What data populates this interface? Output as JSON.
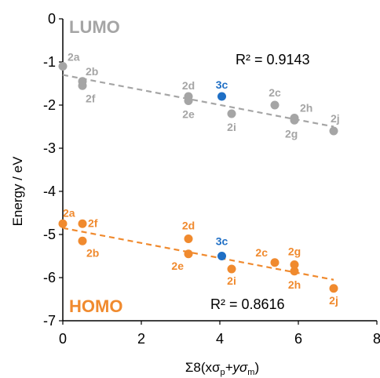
{
  "chart_data": {
    "type": "scatter",
    "xlabel": "Σ8(xσ",
    "xlabel_sub1": "p",
    "xlabel_mid": "+yσ",
    "xlabel_sub2": "m",
    "xlabel_end": ")",
    "ylabel": "Energy / eV",
    "xlim": [
      0,
      8
    ],
    "ylim": [
      -7,
      0
    ],
    "x_ticks": [
      "0",
      "2",
      "4",
      "6",
      "8"
    ],
    "x_tick_values": [
      0,
      2,
      4,
      6,
      8
    ],
    "y_ticks": [
      "0",
      "-1",
      "-2",
      "-3",
      "-4",
      "-5",
      "-6",
      "-7"
    ],
    "y_tick_values": [
      0,
      -1,
      -2,
      -3,
      -4,
      -5,
      -6,
      -7
    ],
    "grid": false,
    "series": [
      {
        "name": "LUMO",
        "color": "#a5a5a5",
        "r2": "R² = 0.9143",
        "trendline": {
          "x": [
            0,
            6.9
          ],
          "y": [
            -1.3,
            -2.5
          ]
        },
        "points": [
          {
            "label": "2a",
            "x": 0.0,
            "y": -1.1,
            "color": "#a5a5a5"
          },
          {
            "label": "2b",
            "x": 0.5,
            "y": -1.45,
            "color": "#a5a5a5"
          },
          {
            "label": "2f",
            "x": 0.5,
            "y": -1.55,
            "color": "#a5a5a5"
          },
          {
            "label": "2d",
            "x": 3.2,
            "y": -1.8,
            "color": "#a5a5a5"
          },
          {
            "label": "2e",
            "x": 3.2,
            "y": -1.9,
            "color": "#a5a5a5"
          },
          {
            "label": "3c",
            "x": 4.05,
            "y": -1.8,
            "color": "#1f6fc5"
          },
          {
            "label": "2i",
            "x": 4.3,
            "y": -2.2,
            "color": "#a5a5a5"
          },
          {
            "label": "2c",
            "x": 5.4,
            "y": -2.0,
            "color": "#a5a5a5"
          },
          {
            "label": "2h",
            "x": 5.9,
            "y": -2.3,
            "color": "#a5a5a5"
          },
          {
            "label": "2g",
            "x": 5.9,
            "y": -2.35,
            "color": "#a5a5a5"
          },
          {
            "label": "2j",
            "x": 6.9,
            "y": -2.6,
            "color": "#a5a5a5"
          }
        ]
      },
      {
        "name": "HOMO",
        "color": "#f08a2e",
        "r2": "R² = 0.8616",
        "trendline": {
          "x": [
            0,
            6.9
          ],
          "y": [
            -4.85,
            -6.05
          ]
        },
        "points": [
          {
            "label": "2a",
            "x": 0.0,
            "y": -4.75,
            "color": "#f08a2e"
          },
          {
            "label": "2f",
            "x": 0.5,
            "y": -4.75,
            "color": "#f08a2e"
          },
          {
            "label": "2b",
            "x": 0.5,
            "y": -5.15,
            "color": "#f08a2e"
          },
          {
            "label": "2d",
            "x": 3.2,
            "y": -5.1,
            "color": "#f08a2e"
          },
          {
            "label": "2e",
            "x": 3.2,
            "y": -5.45,
            "color": "#f08a2e"
          },
          {
            "label": "3c",
            "x": 4.05,
            "y": -5.5,
            "color": "#1f6fc5"
          },
          {
            "label": "2i",
            "x": 4.3,
            "y": -5.8,
            "color": "#f08a2e"
          },
          {
            "label": "2c",
            "x": 5.4,
            "y": -5.65,
            "color": "#f08a2e"
          },
          {
            "label": "2g",
            "x": 5.9,
            "y": -5.7,
            "color": "#f08a2e"
          },
          {
            "label": "2h",
            "x": 5.9,
            "y": -5.85,
            "color": "#f08a2e"
          },
          {
            "label": "2j",
            "x": 6.9,
            "y": -6.25,
            "color": "#f08a2e"
          }
        ]
      }
    ]
  }
}
